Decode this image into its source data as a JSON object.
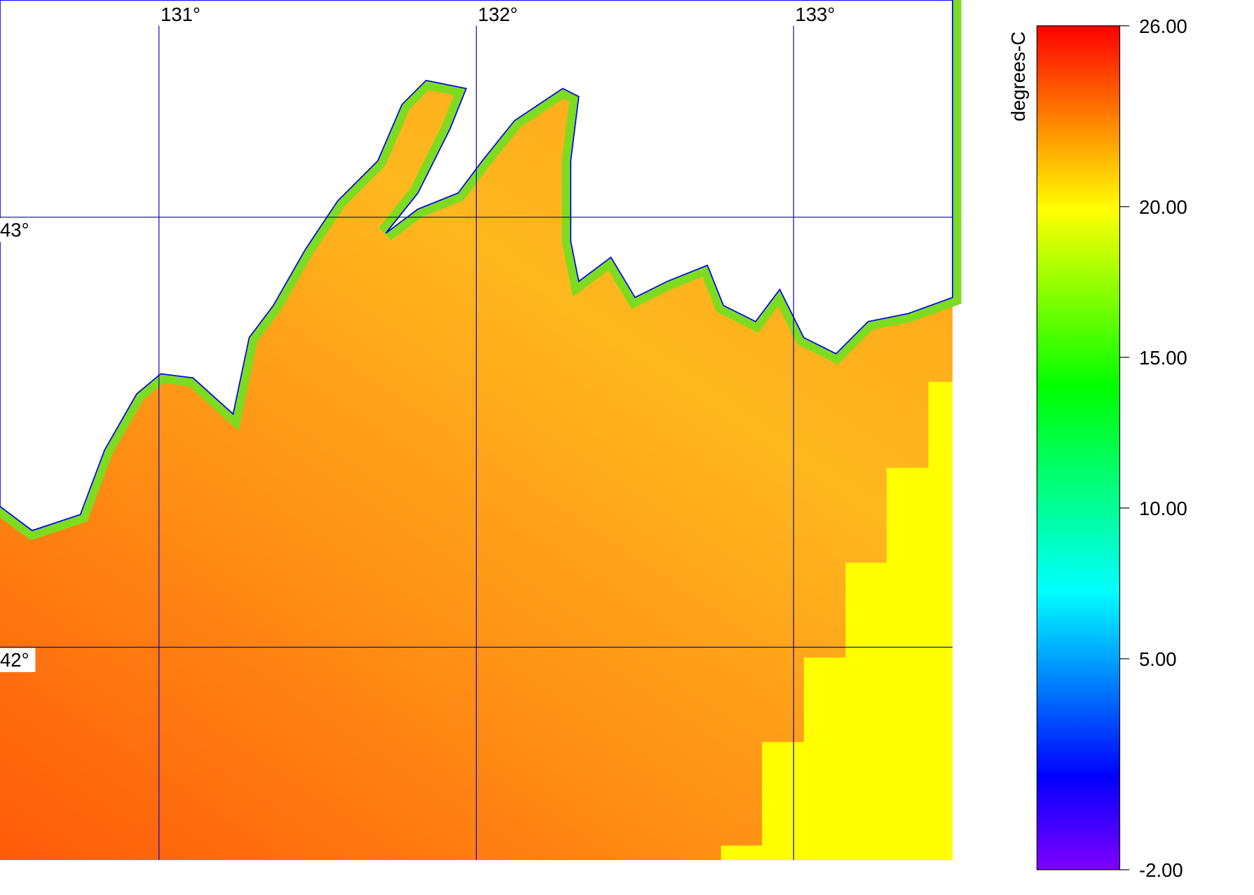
{
  "map": {
    "lonlim": [
      130.499,
      133.501
    ],
    "latlim": [
      41.505,
      43.505
    ],
    "lon_lines": [
      {
        "value": 131,
        "label": "131°"
      },
      {
        "value": 132,
        "label": "132°"
      },
      {
        "value": 133,
        "label": "133°"
      }
    ],
    "lat_lines": [
      {
        "value": 43,
        "label": "43°"
      },
      {
        "value": 42,
        "label": "42°"
      }
    ],
    "grid_color": "#0000c0"
  },
  "colorbar": {
    "label": "degrees-C",
    "lim": [
      -2,
      26
    ],
    "ticks": [
      {
        "value": 26,
        "label": "26.00"
      },
      {
        "value": 20,
        "label": "20.00"
      },
      {
        "value": 15,
        "label": "15.00"
      },
      {
        "value": 10,
        "label": "10.00"
      },
      {
        "value": 5,
        "label": "5.00"
      },
      {
        "value": -2,
        "label": "-2.00"
      }
    ],
    "color_stops": [
      {
        "value": -2,
        "color": "#8000ff"
      },
      {
        "value": 1.1,
        "color": "#0000ff"
      },
      {
        "value": 7.25,
        "color": "#00ffff"
      },
      {
        "value": 14,
        "color": "#00ff00"
      },
      {
        "value": 19.9,
        "color": "#ffff00"
      },
      {
        "value": 26,
        "color": "#ff0000"
      }
    ]
  }
}
